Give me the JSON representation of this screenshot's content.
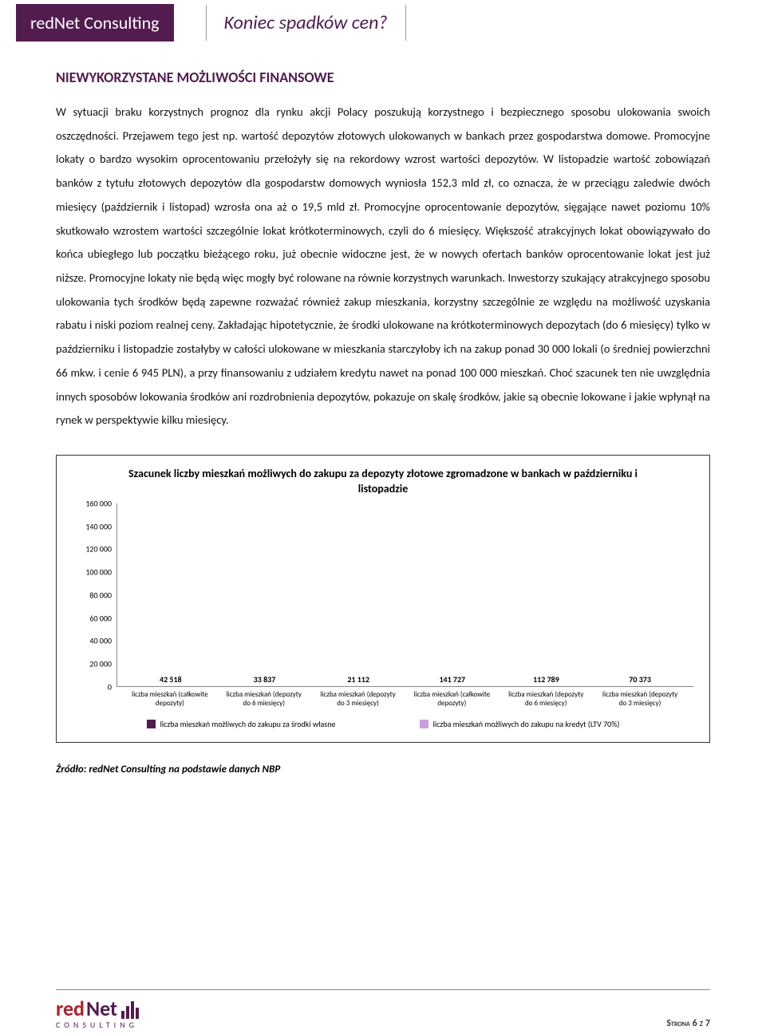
{
  "header": {
    "brand": "redNet Consulting",
    "subtitle": "Koniec spadków cen?"
  },
  "section_title": "NIEWYKORZYSTANE MOŻLIWOŚCI FINANSOWE",
  "body_text": "W sytuacji braku korzystnych prognoz dla rynku akcji Polacy poszukują korzystnego i bezpiecznego sposobu ulokowania swoich oszczędności. Przejawem tego jest np. wartość depozytów złotowych ulokowanych w bankach przez gospodarstwa domowe. Promocyjne lokaty o bardzo wysokim oprocentowaniu przełożyły się na rekordowy wzrost wartości depozytów. W listopadzie wartość zobowiązań banków z tytułu złotowych depozytów dla gospodarstw domowych wyniosła 152,3 mld zł, co oznacza, że w przeciągu zaledwie dwóch miesięcy (październik i listopad) wzrosła ona aż o 19,5 mld zł. Promocyjne oprocentowanie depozytów, sięgające nawet poziomu 10% skutkowało wzrostem wartości szczególnie lokat krótkoterminowych, czyli do 6 miesięcy. Większość atrakcyjnych lokat obowiązywało do końca ubiegłego lub początku bieżącego roku, już obecnie widoczne jest, że w nowych ofertach banków oprocentowanie lokat jest już niższe. Promocyjne lokaty nie będą więc mogły być rolowane na równie korzystnych warunkach. Inwestorzy szukający atrakcyjnego sposobu ulokowania tych środków będą zapewne rozważać również zakup mieszkania, korzystny szczególnie ze względu na możliwość uzyskania rabatu i niski poziom realnej ceny. Zakładając hipotetycznie, że środki ulokowane na krótkoterminowych depozytach (do 6 miesięcy) tylko w październiku i listopadzie zostałyby w całości ulokowane w mieszkania starczyłoby ich na zakup ponad 30 000 lokali (o średniej powierzchni 66 mkw. i cenie 6 945 PLN), a przy finansowaniu z udziałem kredytu nawet na ponad 100 000 mieszkań. Choć szacunek ten nie uwzględnia innych sposobów lokowania środków ani rozdrobnienia depozytów, pokazuje on skalę środków, jakie są obecnie lokowane i jakie wpłynął na rynek w perspektywie kilku miesięcy.",
  "chart": {
    "type": "bar",
    "title": "Szacunek liczby mieszkań możliwych do zakupu za depozyty złotowe zgromadzone w bankach w październiku i listopadzie",
    "ymax": 160000,
    "ytick_step": 20000,
    "yticks": [
      "160 000",
      "140 000",
      "120 000",
      "100 000",
      "80 000",
      "60 000",
      "40 000",
      "20 000",
      "0"
    ],
    "series_colors": {
      "own": "#521c4f",
      "credit": "#c9a0dc"
    },
    "bars": [
      {
        "value": 42518,
        "label": "42 518",
        "group": "own",
        "xlabel": "liczba mieszkań (całkowite depozyty)"
      },
      {
        "value": 33837,
        "label": "33 837",
        "group": "own",
        "xlabel": "liczba mieszkań (depozyty do 6 miesięcy)"
      },
      {
        "value": 21112,
        "label": "21 112",
        "group": "own",
        "xlabel": "liczba mieszkań (depozyty do 3 miesięcy)"
      },
      {
        "value": 141727,
        "label": "141 727",
        "group": "credit",
        "xlabel": "liczba mieszkań (całkowite depozyty)"
      },
      {
        "value": 112789,
        "label": "112 789",
        "group": "credit",
        "xlabel": "liczba mieszkań (depozyty do 6 miesięcy)"
      },
      {
        "value": 70373,
        "label": "70 373",
        "group": "credit",
        "xlabel": "liczba mieszkań (depozyty do 3 miesięcy)"
      }
    ],
    "legend": [
      {
        "color": "#521c4f",
        "label": "liczba mieszkań możliwych do zakupu za środki własne"
      },
      {
        "color": "#c9a0dc",
        "label": "liczba mieszkań możliwych do zakupu na kredyt (LTV 70%)"
      }
    ]
  },
  "source": "Źródło: redNet Consulting na podstawie danych NBP",
  "footer": {
    "logo_red": "red",
    "logo_net": "Net",
    "logo_sub": "CONSULTING",
    "page_label": "Strona",
    "page_current": "6",
    "page_sep": "z",
    "page_total": "7"
  }
}
